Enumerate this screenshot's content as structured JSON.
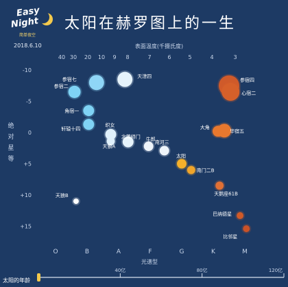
{
  "logo": {
    "line1": "Easy",
    "line2": "Night",
    "sub": "简单夜空"
  },
  "date": "2018.6.10",
  "title": "太阳在赫罗图上的一生",
  "timeline": {
    "label": "太阳的年龄",
    "ticks": [
      "40亿",
      "80亿",
      "120亿"
    ],
    "range": [
      0,
      120
    ],
    "current": 0
  },
  "colors": {
    "background": "#1d3a64",
    "O": "#bfe6fb",
    "B": "#7fd3f5",
    "A": "#e6f3fb",
    "F": "#f2f6fb",
    "G": "#f5b02a",
    "K": "#e8782e",
    "M": "#cf5a2a"
  },
  "chart_data": {
    "type": "scatter",
    "title": "太阳在赫罗图上的一生",
    "xlabel": "光谱型",
    "ylabel": "绝对星等",
    "top_xlabel": "表面温度(千摄氏度)",
    "x_categories": [
      "O",
      "B",
      "A",
      "F",
      "G",
      "K",
      "M"
    ],
    "top_ticks": [
      "40",
      "30",
      "20",
      "10",
      "9",
      "8",
      "7",
      "6",
      "5",
      "4",
      "3"
    ],
    "y_ticks": [
      "-10",
      "-5",
      "0",
      "+5",
      "+10",
      "+15"
    ],
    "ylim": [
      -11,
      18
    ],
    "y_inverted": true,
    "points": [
      {
        "label": "参宿七",
        "x": 1.3,
        "y": -8,
        "size": 11,
        "color": "#8fd6f7"
      },
      {
        "label": "天津四",
        "x": 2.2,
        "y": -8.5,
        "size": 11,
        "color": "#e6f3fb"
      },
      {
        "label": "参宿二",
        "x": 0.6,
        "y": -6.5,
        "size": 9,
        "color": "#7fd3f5"
      },
      {
        "label": "角宿一",
        "x": 1.05,
        "y": -3.5,
        "size": 8,
        "color": "#7fd3f5"
      },
      {
        "label": "轩辕十四",
        "x": 1.05,
        "y": -1.3,
        "size": 8,
        "color": "#7fd3f5"
      },
      {
        "label": "织女",
        "x": 1.75,
        "y": 0.3,
        "size": 8,
        "color": "#dff0fb"
      },
      {
        "label": "北落师门",
        "x": 2.3,
        "y": 1.5,
        "size": 8,
        "color": "#e6f3fb"
      },
      {
        "label": "天狼A",
        "x": 1.75,
        "y": 1.4,
        "size": 6,
        "color": "#dff0fb"
      },
      {
        "label": "牛郎",
        "x": 2.95,
        "y": 2.2,
        "size": 7,
        "color": "#eef4fa"
      },
      {
        "label": "南河三",
        "x": 3.45,
        "y": 2.9,
        "size": 7,
        "color": "#eef4fa"
      },
      {
        "label": "太阳",
        "x": 4.0,
        "y": 5.0,
        "size": 7,
        "color": "#f5b02a"
      },
      {
        "label": "南门二B",
        "x": 4.3,
        "y": 6.0,
        "size": 6,
        "color": "#f0a52a"
      },
      {
        "label": "参宿四",
        "x": 5.5,
        "y": -7.5,
        "size": 15,
        "color": "#cf5a2a"
      },
      {
        "label": "心宿二",
        "x": 5.55,
        "y": -6.5,
        "size": 13,
        "color": "#d6602a"
      },
      {
        "label": "大角",
        "x": 5.15,
        "y": -0.2,
        "size": 8,
        "color": "#e8782e"
      },
      {
        "label": "毕宿五",
        "x": 5.35,
        "y": -0.3,
        "size": 10,
        "color": "#e8782e"
      },
      {
        "label": "天鹅座61B",
        "x": 5.2,
        "y": 8.5,
        "size": 6,
        "color": "#e07035"
      },
      {
        "label": "巴纳德星",
        "x": 5.85,
        "y": 13.3,
        "size": 5,
        "color": "#d05a28"
      },
      {
        "label": "比邻星",
        "x": 6.05,
        "y": 15.4,
        "size": 5,
        "color": "#c95228"
      },
      {
        "label": "天狼B",
        "x": 0.65,
        "y": 11.0,
        "size": 4,
        "color": "#ffffff"
      }
    ]
  }
}
